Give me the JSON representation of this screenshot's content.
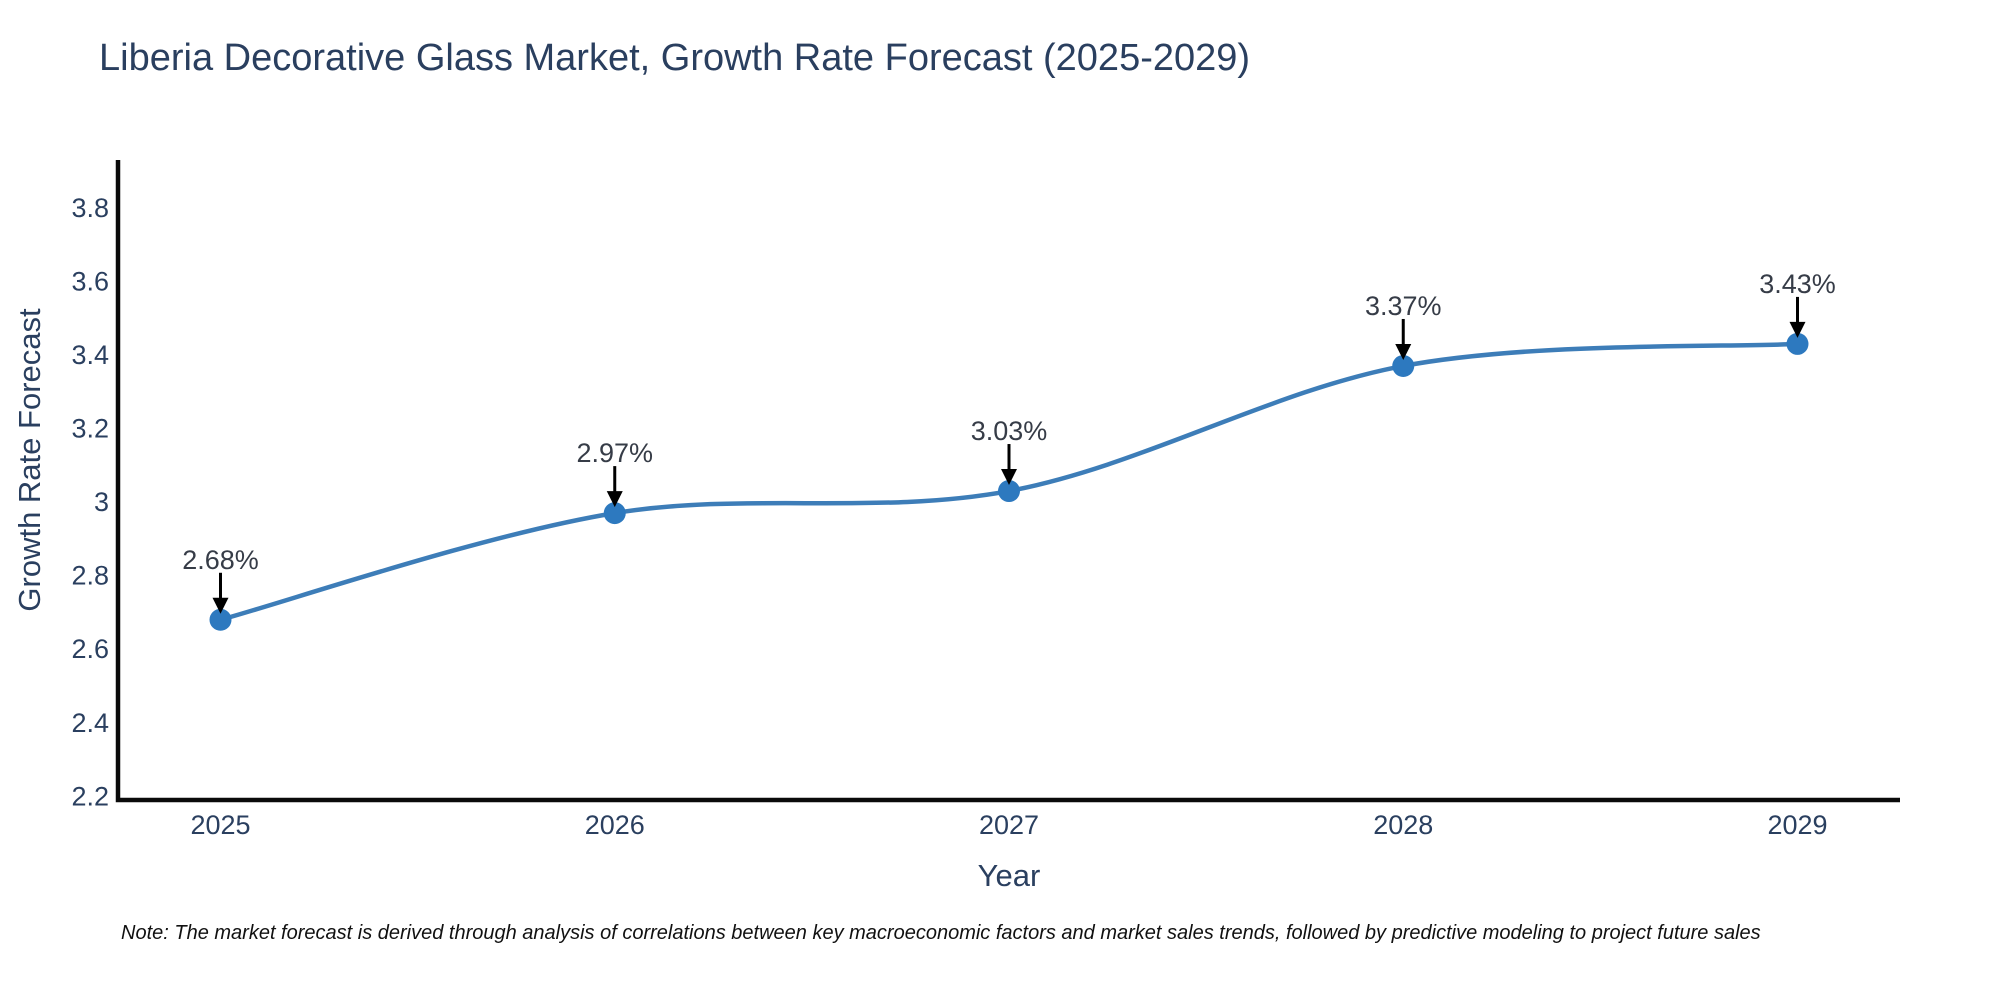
{
  "title": "Liberia Decorative Glass Market, Growth Rate Forecast (2025-2029)",
  "note": "Note: The market forecast is derived through analysis of correlations between key macroeconomic factors and market sales trends, followed by predictive modeling to project future sales",
  "chart_data": {
    "type": "line",
    "title": "Liberia Decorative Glass Market, Growth Rate Forecast (2025-2029)",
    "x": [
      2025,
      2026,
      2027,
      2028,
      2029
    ],
    "values": [
      2.68,
      2.97,
      3.03,
      3.37,
      3.43
    ],
    "point_labels": [
      "2.68%",
      "2.97%",
      "3.03%",
      "3.37%",
      "3.43%"
    ],
    "xlabel": "Year",
    "ylabel": "Growth Rate Forecast",
    "xticks": [
      2025,
      2026,
      2027,
      2028,
      2029
    ],
    "yticks": [
      2.2,
      2.4,
      2.6,
      2.8,
      3,
      3.2,
      3.4,
      3.6,
      3.8
    ],
    "xlim": [
      2024.74,
      2029.26
    ],
    "ylim": [
      2.19,
      3.93
    ],
    "grid": false,
    "legend": false,
    "line_shape": "spline",
    "colors": {
      "line": "#3d7db8",
      "marker": "#2d79bf",
      "axis": "#0a0a0a",
      "tick_text": "#2a3f5f",
      "annotation_text": "#363c47"
    }
  }
}
